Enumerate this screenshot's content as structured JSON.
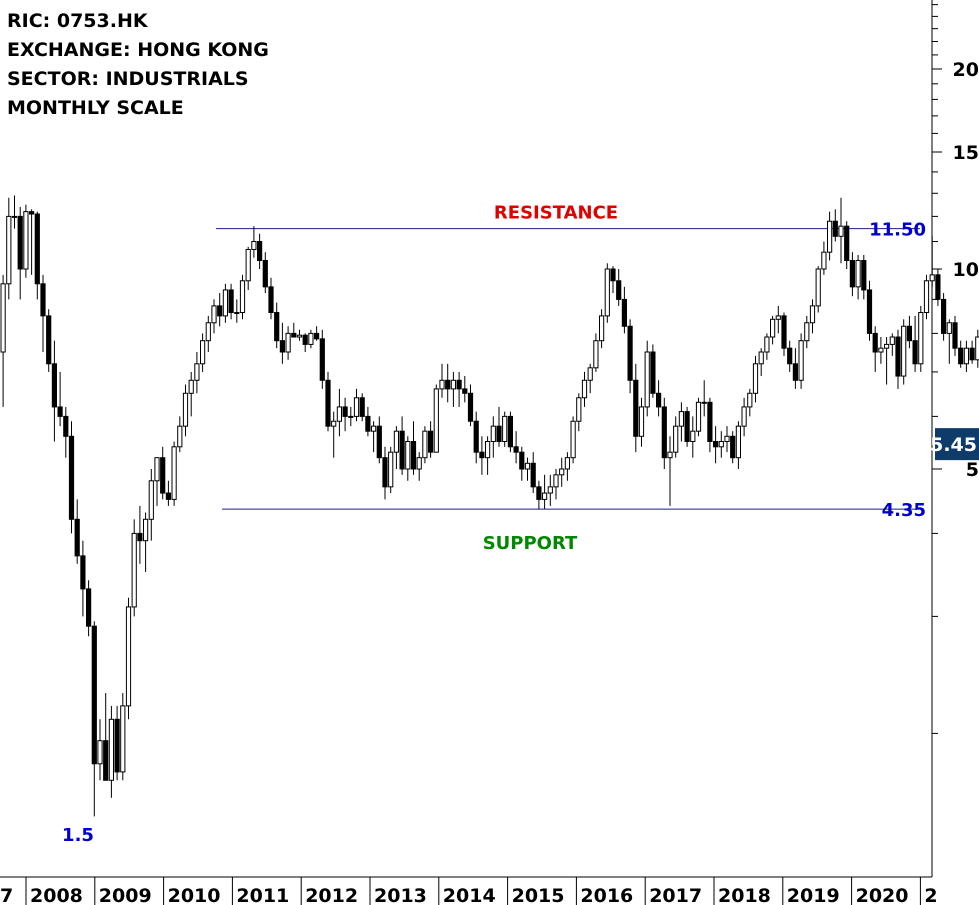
{
  "header": {
    "ric": "RIC: 0753.HK",
    "exchange": "EXCHANGE: HONG KONG",
    "sector": "SECTOR: INDUSTRIALS",
    "scale": "MONTHLY SCALE"
  },
  "chart_data": {
    "type": "candlestick",
    "title": "",
    "xlabel": "",
    "ylabel": "",
    "y_scale": "log",
    "ylim": [
      1.2,
      26
    ],
    "grid": false,
    "x_ticks": [
      "7",
      "2008",
      "2009",
      "2010",
      "2011",
      "2012",
      "2013",
      "2014",
      "2015",
      "2016",
      "2017",
      "2018",
      "2019",
      "2020",
      "2"
    ],
    "y_ticks": [
      5,
      10,
      15,
      20
    ],
    "levels": [
      {
        "label": "RESISTANCE",
        "value_label": "11.50",
        "value": 11.5,
        "color": "#e00000",
        "value_color": "#0000cc"
      },
      {
        "label": "SUPPORT",
        "value_label": "4.35",
        "value": 4.35,
        "color": "#008800",
        "value_color": "#0000cc"
      }
    ],
    "low_annotation": {
      "text": "1.5",
      "value": 1.5,
      "color": "#0000cc"
    },
    "last_price": {
      "text": "5.45",
      "value": 5.45,
      "bg": "#0f3b6b"
    },
    "series": [
      {
        "values": [
          [
            7.5,
            9.8,
            6.2,
            9.5
          ],
          [
            9.5,
            12.8,
            9.0,
            12.0
          ],
          [
            12.0,
            12.9,
            11.5,
            12.0
          ],
          [
            12.0,
            12.4,
            9.0,
            10.0
          ],
          [
            10.0,
            12.5,
            9.7,
            12.2
          ],
          [
            12.2,
            12.3,
            9.8,
            12.1
          ],
          [
            12.1,
            12.2,
            9.0,
            9.5
          ],
          [
            9.5,
            9.8,
            7.5,
            8.5
          ],
          [
            8.5,
            8.7,
            7.0,
            7.2
          ],
          [
            7.2,
            7.8,
            5.5,
            6.2
          ],
          [
            6.2,
            7.0,
            5.8,
            6.0
          ],
          [
            6.0,
            6.2,
            5.2,
            5.6
          ],
          [
            5.6,
            5.9,
            4.0,
            4.2
          ],
          [
            4.2,
            4.5,
            3.6,
            3.7
          ],
          [
            3.7,
            3.9,
            3.0,
            3.3
          ],
          [
            3.3,
            3.4,
            2.8,
            2.9
          ],
          [
            2.9,
            2.95,
            1.5,
            1.8
          ],
          [
            1.8,
            2.1,
            1.7,
            1.95
          ],
          [
            1.95,
            2.3,
            1.75,
            1.7
          ],
          [
            1.7,
            2.2,
            1.6,
            2.1
          ],
          [
            2.1,
            2.2,
            1.7,
            1.75
          ],
          [
            1.75,
            2.3,
            1.7,
            2.2
          ],
          [
            2.2,
            3.2,
            2.1,
            3.1
          ],
          [
            3.1,
            4.2,
            3.0,
            4.0
          ],
          [
            4.0,
            4.4,
            3.6,
            3.9
          ],
          [
            3.9,
            4.3,
            3.5,
            4.2
          ],
          [
            4.2,
            5.0,
            3.9,
            4.8
          ],
          [
            4.8,
            5.2,
            4.4,
            5.2
          ],
          [
            5.2,
            5.4,
            4.5,
            4.6
          ],
          [
            4.6,
            4.8,
            4.4,
            4.5
          ],
          [
            4.5,
            5.5,
            4.4,
            5.4
          ],
          [
            5.4,
            6.0,
            5.3,
            5.8
          ],
          [
            5.8,
            6.7,
            5.6,
            6.5
          ],
          [
            6.5,
            7.0,
            6.0,
            6.8
          ],
          [
            6.8,
            7.5,
            6.5,
            7.2
          ],
          [
            7.2,
            8.0,
            7.0,
            7.8
          ],
          [
            7.8,
            8.5,
            7.5,
            8.3
          ],
          [
            8.3,
            9.0,
            8.0,
            8.8
          ],
          [
            8.8,
            9.2,
            8.2,
            8.5
          ],
          [
            8.5,
            9.5,
            8.3,
            9.3
          ],
          [
            9.3,
            9.5,
            8.4,
            8.6
          ],
          [
            8.6,
            9.0,
            8.3,
            8.6
          ],
          [
            8.6,
            9.8,
            8.4,
            9.6
          ],
          [
            9.6,
            10.8,
            9.3,
            10.7
          ],
          [
            10.7,
            11.6,
            10.4,
            11.0
          ],
          [
            11.0,
            11.3,
            10.0,
            10.3
          ],
          [
            10.3,
            10.6,
            9.2,
            9.4
          ],
          [
            9.4,
            9.7,
            8.4,
            8.6
          ],
          [
            8.6,
            8.9,
            7.6,
            7.8
          ],
          [
            7.8,
            8.3,
            7.2,
            7.5
          ],
          [
            7.5,
            8.2,
            7.3,
            8.0
          ],
          [
            8.0,
            8.3,
            7.9,
            7.9
          ],
          [
            7.9,
            8.1,
            7.8,
            7.95
          ],
          [
            7.95,
            8.0,
            7.5,
            7.7
          ],
          [
            7.7,
            8.1,
            7.6,
            8.0
          ],
          [
            8.0,
            8.2,
            7.8,
            7.85
          ],
          [
            7.85,
            8.1,
            6.6,
            6.8
          ],
          [
            6.8,
            7.0,
            5.7,
            5.8
          ],
          [
            5.8,
            6.1,
            5.2,
            5.9
          ],
          [
            5.9,
            6.6,
            5.6,
            6.2
          ],
          [
            6.2,
            6.4,
            5.7,
            6.0
          ],
          [
            6.0,
            6.2,
            5.8,
            6.0
          ],
          [
            6.0,
            6.6,
            5.9,
            6.4
          ],
          [
            6.4,
            6.5,
            5.9,
            6.0
          ],
          [
            6.0,
            6.2,
            5.6,
            5.7
          ],
          [
            5.7,
            5.9,
            5.3,
            5.8
          ],
          [
            5.8,
            6.0,
            5.1,
            5.2
          ],
          [
            5.2,
            5.4,
            4.5,
            4.7
          ],
          [
            4.7,
            5.4,
            4.6,
            5.3
          ],
          [
            5.3,
            5.8,
            5.0,
            5.7
          ],
          [
            5.7,
            6.0,
            4.9,
            5.0
          ],
          [
            5.0,
            5.6,
            4.8,
            5.5
          ],
          [
            5.5,
            5.9,
            4.9,
            5.0
          ],
          [
            5.0,
            5.3,
            4.8,
            5.2
          ],
          [
            5.2,
            5.8,
            5.1,
            5.7
          ],
          [
            5.7,
            5.9,
            5.2,
            5.3
          ],
          [
            5.3,
            6.7,
            5.3,
            6.6
          ],
          [
            6.6,
            7.2,
            6.4,
            6.8
          ],
          [
            6.8,
            7.2,
            6.3,
            6.6
          ],
          [
            6.6,
            7.0,
            6.2,
            6.8
          ],
          [
            6.8,
            7.0,
            6.2,
            6.6
          ],
          [
            6.6,
            6.9,
            6.3,
            6.5
          ],
          [
            6.5,
            6.7,
            5.8,
            5.9
          ],
          [
            5.9,
            6.1,
            5.1,
            5.3
          ],
          [
            5.3,
            5.6,
            4.9,
            5.2
          ],
          [
            5.2,
            5.6,
            4.9,
            5.5
          ],
          [
            5.5,
            6.0,
            5.2,
            5.8
          ],
          [
            5.8,
            6.2,
            5.4,
            5.5
          ],
          [
            5.5,
            6.1,
            5.4,
            6.0
          ],
          [
            6.0,
            6.1,
            5.3,
            5.4
          ],
          [
            5.4,
            5.7,
            5.1,
            5.3
          ],
          [
            5.3,
            5.4,
            4.8,
            5.0
          ],
          [
            5.0,
            5.2,
            4.8,
            5.1
          ],
          [
            5.1,
            5.3,
            4.6,
            4.7
          ],
          [
            4.7,
            4.8,
            4.35,
            4.5
          ],
          [
            4.5,
            4.9,
            4.35,
            4.6
          ],
          [
            4.6,
            4.9,
            4.4,
            4.7
          ],
          [
            4.7,
            5.0,
            4.5,
            4.9
          ],
          [
            4.9,
            5.2,
            4.7,
            5.0
          ],
          [
            5.0,
            5.3,
            4.8,
            5.2
          ],
          [
            5.2,
            6.0,
            5.1,
            5.9
          ],
          [
            5.9,
            6.5,
            5.7,
            6.4
          ],
          [
            6.4,
            7.0,
            6.2,
            6.8
          ],
          [
            6.8,
            7.2,
            6.5,
            7.1
          ],
          [
            7.1,
            8.0,
            7.0,
            7.8
          ],
          [
            7.8,
            8.7,
            7.6,
            8.5
          ],
          [
            8.5,
            10.2,
            8.3,
            10.0
          ],
          [
            10.0,
            10.1,
            9.2,
            9.6
          ],
          [
            9.6,
            10.0,
            8.8,
            9.0
          ],
          [
            9.0,
            9.4,
            8.0,
            8.2
          ],
          [
            8.2,
            8.4,
            6.5,
            6.8
          ],
          [
            6.8,
            7.2,
            5.3,
            5.6
          ],
          [
            5.6,
            6.4,
            5.4,
            6.2
          ],
          [
            6.2,
            7.8,
            6.0,
            7.5
          ],
          [
            7.5,
            7.7,
            6.4,
            6.5
          ],
          [
            6.5,
            6.8,
            6.0,
            6.2
          ],
          [
            6.2,
            6.4,
            5.0,
            5.2
          ],
          [
            5.2,
            5.6,
            4.4,
            5.3
          ],
          [
            5.3,
            6.0,
            5.2,
            5.8
          ],
          [
            5.8,
            6.3,
            5.5,
            6.1
          ],
          [
            6.1,
            6.2,
            5.4,
            5.5
          ],
          [
            5.5,
            6.0,
            5.2,
            5.7
          ],
          [
            5.7,
            6.4,
            5.6,
            6.3
          ],
          [
            6.3,
            6.8,
            6.0,
            6.3
          ],
          [
            6.3,
            6.4,
            5.3,
            5.5
          ],
          [
            5.5,
            5.8,
            5.1,
            5.4
          ],
          [
            5.4,
            5.7,
            5.2,
            5.5
          ],
          [
            5.5,
            5.8,
            5.3,
            5.6
          ],
          [
            5.6,
            5.7,
            5.1,
            5.2
          ],
          [
            5.2,
            5.9,
            5.0,
            5.8
          ],
          [
            5.8,
            6.4,
            5.6,
            6.2
          ],
          [
            6.2,
            6.6,
            6.0,
            6.5
          ],
          [
            6.5,
            7.4,
            6.3,
            7.2
          ],
          [
            7.2,
            7.6,
            6.9,
            7.5
          ],
          [
            7.5,
            8.0,
            7.3,
            7.9
          ],
          [
            7.9,
            8.5,
            7.7,
            8.4
          ],
          [
            8.4,
            8.8,
            8.0,
            8.5
          ],
          [
            8.5,
            8.6,
            7.4,
            7.6
          ],
          [
            7.6,
            7.8,
            7.0,
            7.2
          ],
          [
            7.2,
            7.6,
            6.6,
            6.8
          ],
          [
            6.8,
            8.0,
            6.6,
            7.8
          ],
          [
            7.8,
            8.5,
            7.6,
            8.3
          ],
          [
            8.3,
            9.0,
            8.0,
            8.8
          ],
          [
            8.8,
            10.1,
            8.6,
            10.0
          ],
          [
            10.0,
            11.0,
            9.8,
            10.6
          ],
          [
            10.6,
            12.2,
            10.3,
            11.8
          ],
          [
            11.8,
            12.3,
            11.0,
            11.2
          ],
          [
            11.2,
            12.8,
            10.2,
            11.6
          ],
          [
            11.6,
            11.8,
            10.0,
            10.3
          ],
          [
            10.3,
            10.6,
            9.1,
            9.4
          ],
          [
            9.4,
            10.5,
            9.0,
            10.3
          ],
          [
            10.3,
            10.5,
            9.0,
            9.3
          ],
          [
            9.3,
            9.6,
            7.8,
            8.0
          ],
          [
            8.0,
            8.2,
            7.0,
            7.5
          ],
          [
            7.5,
            7.9,
            7.2,
            7.6
          ],
          [
            7.6,
            7.9,
            6.7,
            7.7
          ],
          [
            7.7,
            8.0,
            7.4,
            7.9
          ],
          [
            7.9,
            8.1,
            6.6,
            6.9
          ],
          [
            6.9,
            8.4,
            6.7,
            8.2
          ],
          [
            8.2,
            8.5,
            7.6,
            7.8
          ],
          [
            7.8,
            8.5,
            7.0,
            7.2
          ],
          [
            7.2,
            8.8,
            7.0,
            8.6
          ],
          [
            8.6,
            9.8,
            8.4,
            9.6
          ],
          [
            9.6,
            11.2,
            9.4,
            9.8
          ],
          [
            9.8,
            10.0,
            8.8,
            9.0
          ],
          [
            9.0,
            9.2,
            7.8,
            8.0
          ],
          [
            8.0,
            8.4,
            7.2,
            8.3
          ],
          [
            8.3,
            8.5,
            7.4,
            7.6
          ],
          [
            7.6,
            7.8,
            7.1,
            7.2
          ],
          [
            7.2,
            7.8,
            7.0,
            7.6
          ],
          [
            7.6,
            7.8,
            7.2,
            7.3
          ],
          [
            7.3,
            8.1,
            7.1,
            7.9
          ],
          [
            7.9,
            8.7,
            7.7,
            8.3
          ],
          [
            8.3,
            8.4,
            6.9,
            7.0
          ],
          [
            7.0,
            7.3,
            6.3,
            6.5
          ],
          [
            6.5,
            6.6,
            5.2,
            5.3
          ],
          [
            5.3,
            5.5,
            4.6,
            5.2
          ],
          [
            5.2,
            5.5,
            4.6,
            5.45
          ]
        ]
      }
    ]
  }
}
